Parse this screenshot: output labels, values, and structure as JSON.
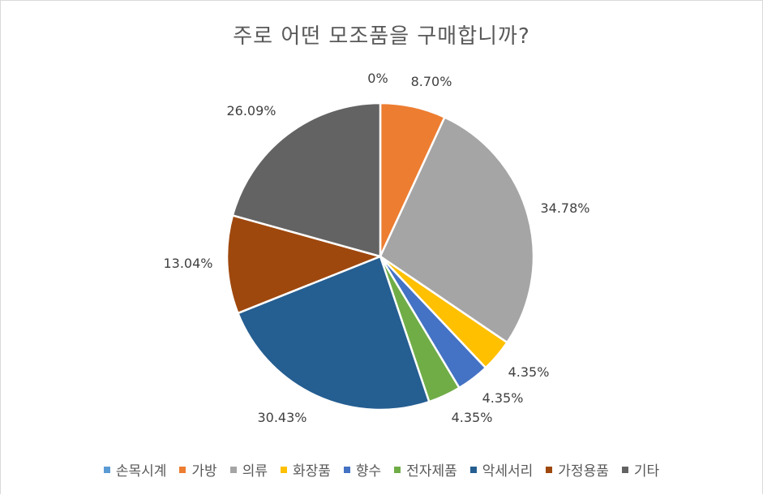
{
  "chart_data": {
    "type": "pie",
    "title": "주로 어떤 모조품을 구매합니까?",
    "slices": [
      {
        "label": "손목시계",
        "value": 0,
        "value_label": "0%",
        "color": "#5B9BD5"
      },
      {
        "label": "가방",
        "value": 8.7,
        "value_label": "8.70%",
        "color": "#ED7D31"
      },
      {
        "label": "의류",
        "value": 34.78,
        "value_label": "34.78%",
        "color": "#A5A5A5"
      },
      {
        "label": "화장품",
        "value": 4.35,
        "value_label": "4.35%",
        "color": "#FFC000"
      },
      {
        "label": "향수",
        "value": 4.35,
        "value_label": "4.35%",
        "color": "#4472C4"
      },
      {
        "label": "전자제품",
        "value": 4.35,
        "value_label": "4.35%",
        "color": "#70AD47"
      },
      {
        "label": "악세서리",
        "value": 30.43,
        "value_label": "30.43%",
        "color": "#255E91"
      },
      {
        "label": "가정용품",
        "value": 13.04,
        "value_label": "13.04%",
        "color": "#9E480E"
      },
      {
        "label": "기타",
        "value": 26.09,
        "value_label": "26.09%",
        "color": "#636363"
      }
    ],
    "legend_position": "bottom"
  }
}
